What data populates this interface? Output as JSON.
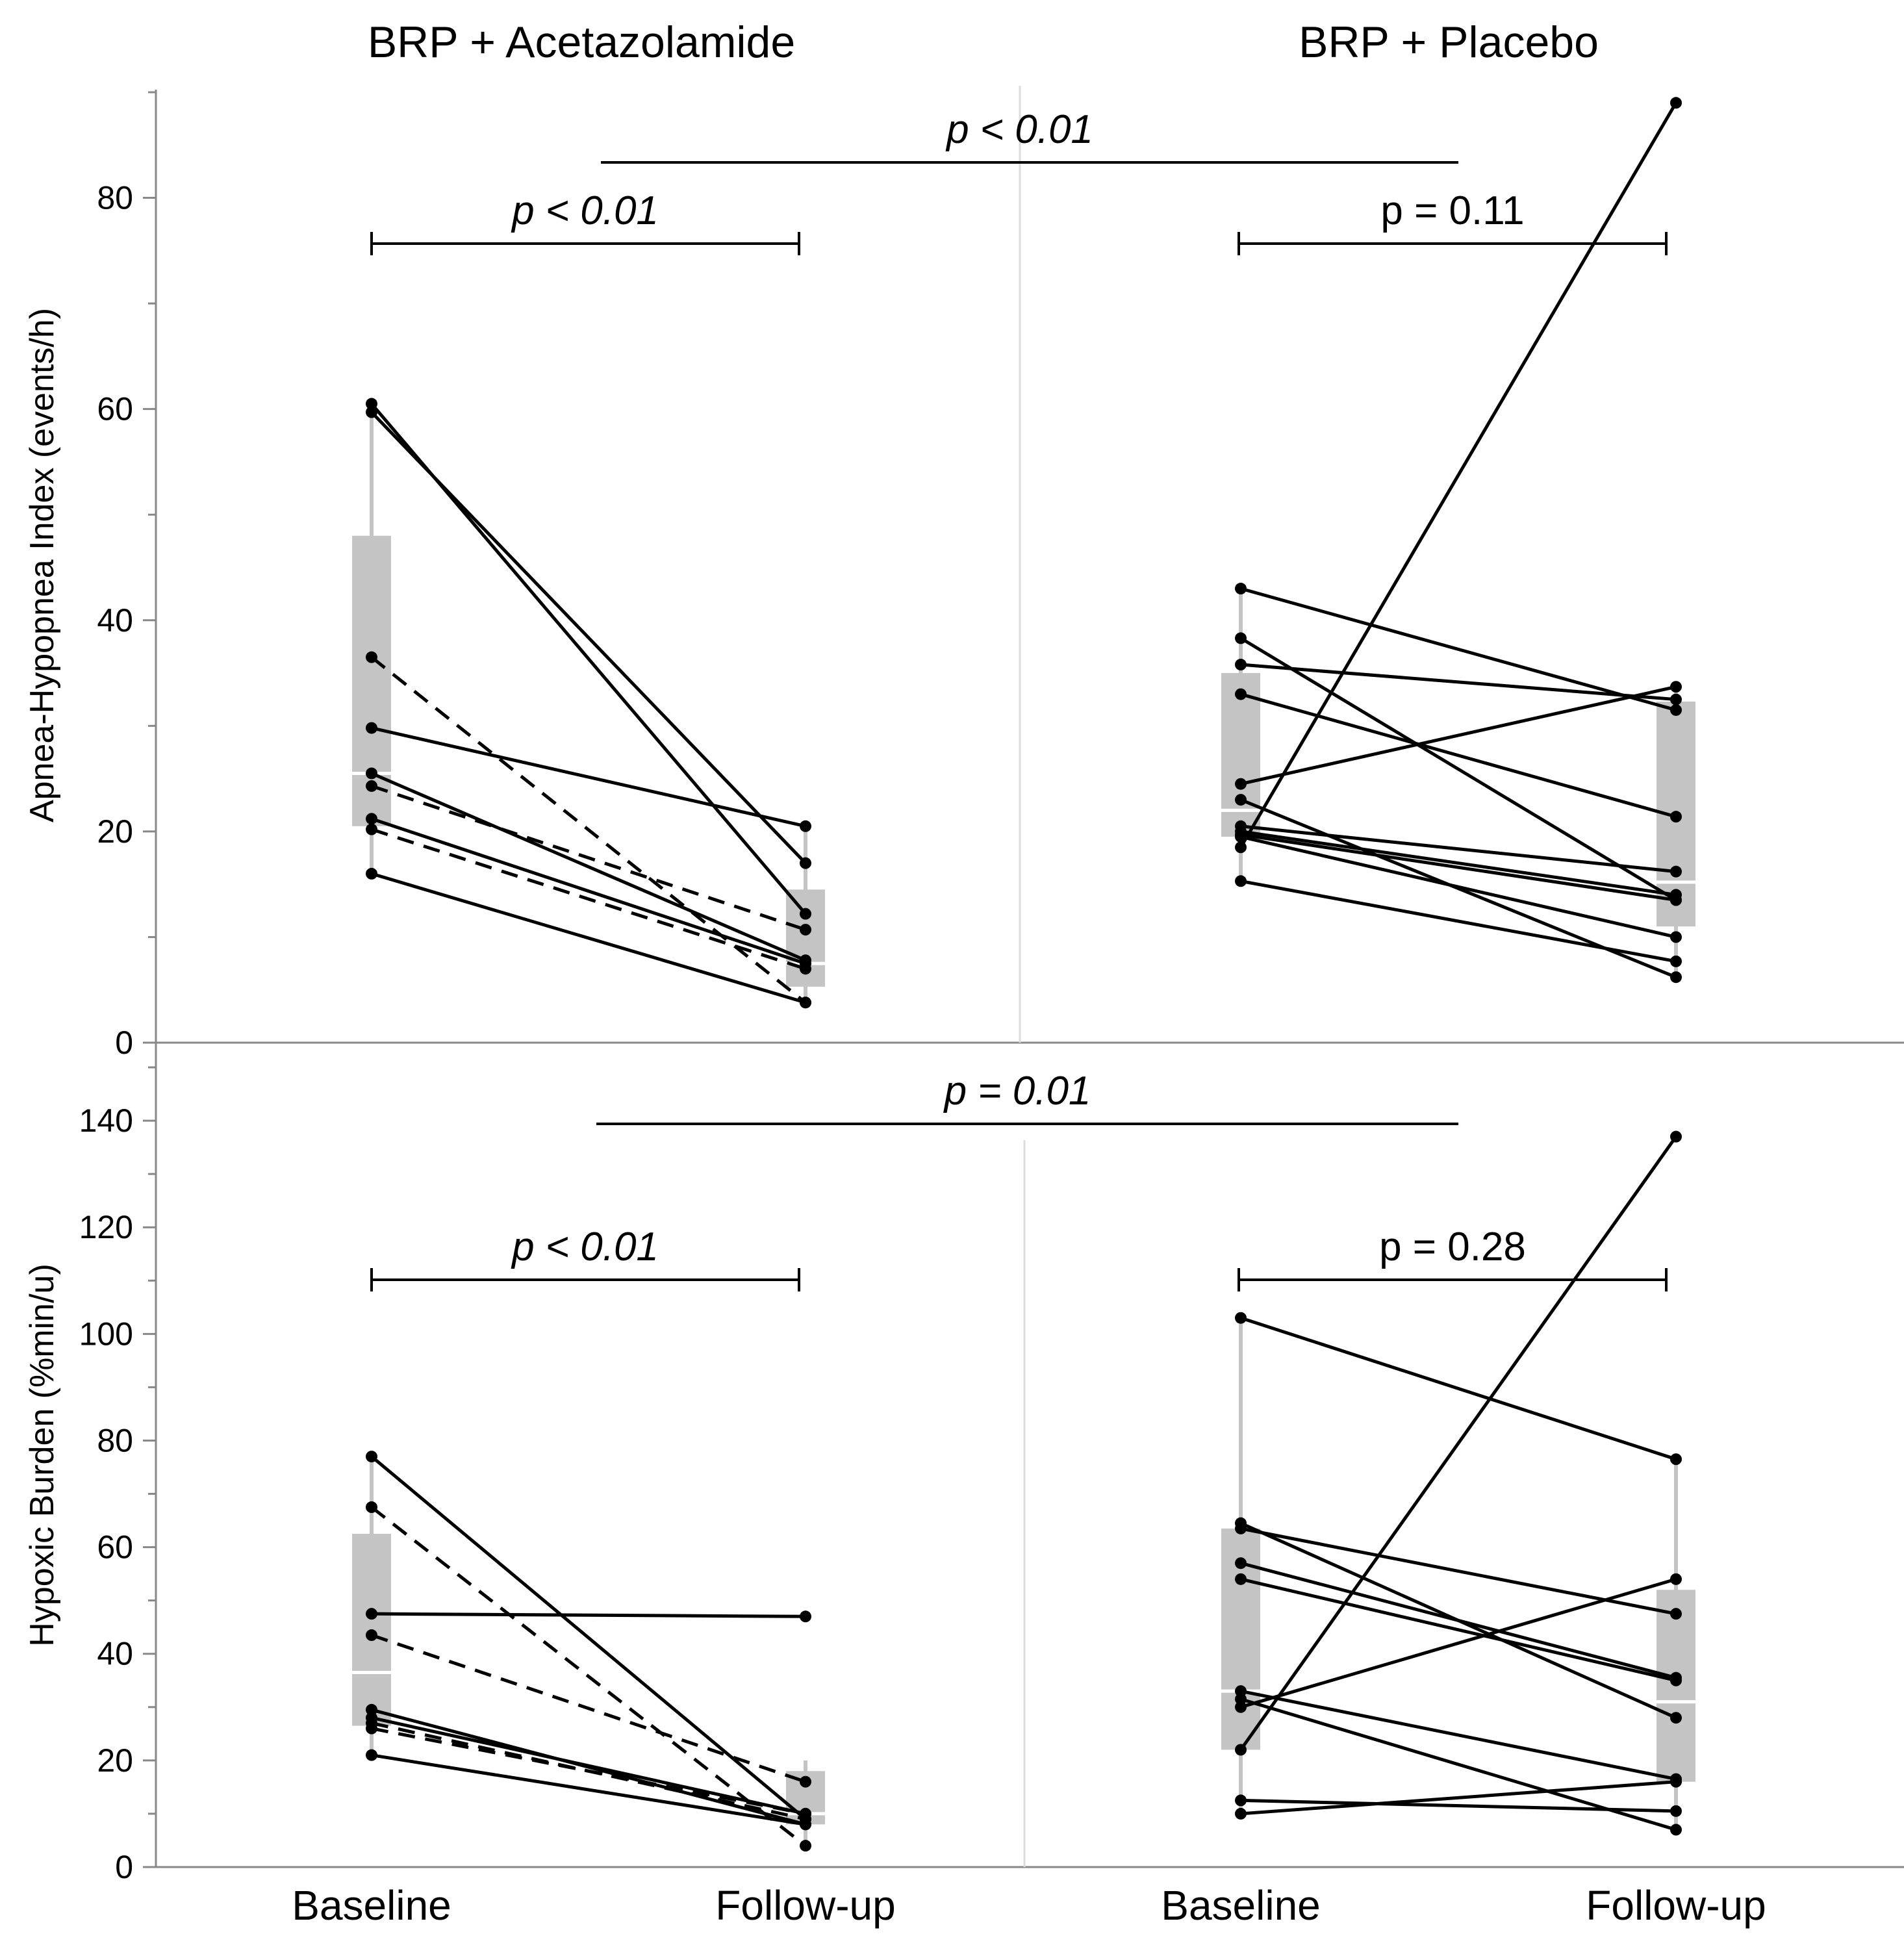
{
  "figure": {
    "group_titles": [
      "BRP + Acetazolamide",
      "BRP + Placebo"
    ],
    "x_categories": [
      "Baseline",
      "Follow-up"
    ]
  },
  "chart_data": [
    {
      "type": "paired-line with boxplots",
      "ylabel": "Apnea-Hypopnea Index (events/h)",
      "ylim": [
        0,
        90
      ],
      "yticks": [
        0,
        20,
        40,
        60,
        80
      ],
      "ytick_labels": [
        "0",
        "20",
        "40",
        "60",
        "80"
      ],
      "between_group_p": "p < 0.01",
      "groups": [
        {
          "name": "BRP + Acetazolamide",
          "within_p": "p < 0.01",
          "within_p_italic": true,
          "box": {
            "baseline": {
              "min": 16,
              "q1": 20.5,
              "median": 25.5,
              "q3": 48,
              "max": 60.5
            },
            "followup": {
              "min": 3.8,
              "q1": 5.3,
              "median": 7.5,
              "q3": 14.5,
              "max": 20.5
            }
          },
          "pairs": [
            {
              "baseline": 60.5,
              "followup": 12.2,
              "style": "solid"
            },
            {
              "baseline": 59.7,
              "followup": 17.0,
              "style": "solid"
            },
            {
              "baseline": 36.5,
              "followup": 3.8,
              "style": "dashed"
            },
            {
              "baseline": 29.8,
              "followup": 20.5,
              "style": "solid"
            },
            {
              "baseline": 25.5,
              "followup": 7.8,
              "style": "solid"
            },
            {
              "baseline": 24.3,
              "followup": 10.7,
              "style": "dashed"
            },
            {
              "baseline": 21.2,
              "followup": 7.5,
              "style": "solid"
            },
            {
              "baseline": 20.2,
              "followup": 7.0,
              "style": "dashed"
            },
            {
              "baseline": 16.0,
              "followup": 3.8,
              "style": "solid"
            }
          ]
        },
        {
          "name": "BRP + Placebo",
          "within_p": "p = 0.11",
          "within_p_italic": false,
          "box": {
            "baseline": {
              "min": 15.3,
              "q1": 19.5,
              "median": 22,
              "q3": 35,
              "max": 43
            },
            "followup": {
              "min": 6.2,
              "q1": 11,
              "median": 15.2,
              "q3": 32.3,
              "max": 33.7
            }
          },
          "pairs": [
            {
              "baseline": 43.0,
              "followup": 31.5,
              "style": "solid"
            },
            {
              "baseline": 38.3,
              "followup": 13.5,
              "style": "solid"
            },
            {
              "baseline": 35.8,
              "followup": 32.5,
              "style": "solid"
            },
            {
              "baseline": 33.0,
              "followup": 21.4,
              "style": "solid"
            },
            {
              "baseline": 24.5,
              "followup": 33.7,
              "style": "solid"
            },
            {
              "baseline": 23.0,
              "followup": 6.2,
              "style": "solid"
            },
            {
              "baseline": 20.5,
              "followup": 16.2,
              "style": "solid"
            },
            {
              "baseline": 20.0,
              "followup": 14.0,
              "style": "solid"
            },
            {
              "baseline": 19.7,
              "followup": 13.5,
              "style": "solid"
            },
            {
              "baseline": 19.5,
              "followup": 10.0,
              "style": "solid"
            },
            {
              "baseline": 18.5,
              "followup": 89.0,
              "style": "solid"
            },
            {
              "baseline": 15.3,
              "followup": 7.7,
              "style": "solid"
            }
          ]
        }
      ]
    },
    {
      "type": "paired-line with boxplots",
      "ylabel": "Hypoxic Burden (%min/u)",
      "ylim": [
        0,
        150
      ],
      "yticks": [
        0,
        20,
        40,
        60,
        80,
        100,
        120,
        140
      ],
      "ytick_labels": [
        "0",
        "20",
        "40",
        "60",
        "80",
        "100",
        "120",
        "140"
      ],
      "between_group_p": "p = 0.01",
      "groups": [
        {
          "name": "BRP + Acetazolamide",
          "within_p": "p < 0.01",
          "within_p_italic": true,
          "box": {
            "baseline": {
              "min": 21,
              "q1": 26.5,
              "median": 36.5,
              "q3": 62.5,
              "max": 77
            },
            "followup": {
              "min": 4,
              "q1": 8,
              "median": 10,
              "q3": 18,
              "max": 20
            }
          },
          "pairs": [
            {
              "baseline": 77,
              "followup": 9,
              "style": "solid"
            },
            {
              "baseline": 67.5,
              "followup": 4,
              "style": "dashed"
            },
            {
              "baseline": 47.5,
              "followup": 47,
              "style": "solid"
            },
            {
              "baseline": 43.5,
              "followup": 16,
              "style": "dashed"
            },
            {
              "baseline": 29.5,
              "followup": 8,
              "style": "solid"
            },
            {
              "baseline": 28,
              "followup": 10,
              "style": "solid"
            },
            {
              "baseline": 27,
              "followup": 9,
              "style": "dashed"
            },
            {
              "baseline": 26,
              "followup": 10,
              "style": "dashed"
            },
            {
              "baseline": 21,
              "followup": 8,
              "style": "solid"
            }
          ]
        },
        {
          "name": "BRP + Placebo",
          "within_p": "p = 0.28",
          "within_p_italic": false,
          "box": {
            "baseline": {
              "min": 10,
              "q1": 22,
              "median": 33,
              "q3": 63.5,
              "max": 103
            },
            "followup": {
              "min": 7,
              "q1": 16,
              "median": 31,
              "q3": 52,
              "max": 76.5
            }
          },
          "pairs": [
            {
              "baseline": 103,
              "followup": 76.5,
              "style": "solid"
            },
            {
              "baseline": 64.5,
              "followup": 28,
              "style": "solid"
            },
            {
              "baseline": 63.5,
              "followup": 47.5,
              "style": "solid"
            },
            {
              "baseline": 57,
              "followup": 35.5,
              "style": "solid"
            },
            {
              "baseline": 54,
              "followup": 35,
              "style": "solid"
            },
            {
              "baseline": 33,
              "followup": 16.5,
              "style": "solid"
            },
            {
              "baseline": 31.5,
              "followup": 7,
              "style": "solid"
            },
            {
              "baseline": 30,
              "followup": 54,
              "style": "solid"
            },
            {
              "baseline": 22,
              "followup": 137,
              "style": "solid"
            },
            {
              "baseline": 12.5,
              "followup": 10.5,
              "style": "solid"
            },
            {
              "baseline": 10,
              "followup": 16,
              "style": "solid"
            }
          ]
        }
      ]
    }
  ]
}
